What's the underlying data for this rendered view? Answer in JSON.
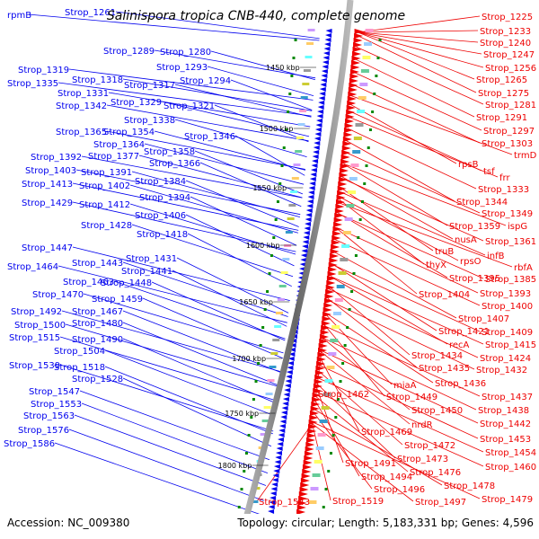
{
  "title": "Salinispora tropica CNB-440, complete genome",
  "footer": {
    "accession": "Accession: NC_009380",
    "summary": "Topology: circular; Length: 5,183,331 bp; Genes: 4,596"
  },
  "colors": {
    "forward": "#0000ee",
    "reverse": "#ee0000",
    "backbone": "#888888",
    "kbp_tick": "#008800"
  },
  "kbp_marks": [
    "1450 kbp",
    "1500 kbp",
    "1550 kbp",
    "1600 kbp",
    "1650 kbp",
    "1700 kbp",
    "1750 kbp",
    "1800 kbp"
  ],
  "left_labels": [
    "rpmB",
    "Strop_1261",
    "Strop_1289",
    "Strop_1280",
    "Strop_1293",
    "Strop_1294",
    "Strop_1319",
    "Strop_1318",
    "Strop_1317",
    "Strop_1335",
    "Strop_1331",
    "Strop_1329",
    "Strop_1342",
    "Strop_1321",
    "Strop_1338",
    "Strop_1365",
    "Strop_1354",
    "Strop_1346",
    "Strop_1364",
    "Strop_1392",
    "Strop_1377",
    "Strop_1358",
    "Strop_1366",
    "Strop_1403",
    "Strop_1391",
    "Strop_1384",
    "Strop_1413",
    "Strop_1402",
    "Strop_1394",
    "Strop_1429",
    "Strop_1412",
    "Strop_1406",
    "Strop_1428",
    "Strop_1418",
    "Strop_1447",
    "Strop_1443",
    "Strop_1431",
    "Strop_1441",
    "Strop_1464",
    "Strop_1463",
    "Strop_1448",
    "Strop_1470",
    "Strop_1459",
    "Strop_1492",
    "Strop_1467",
    "Strop_1500",
    "Strop_1480",
    "Strop_1515",
    "Strop_1490",
    "Strop_1504",
    "Strop_1539",
    "Strop_1518",
    "Strop_1528",
    "Strop_1547",
    "Strop_1553",
    "Strop_1563",
    "Strop_1576",
    "Strop_1586"
  ],
  "right_labels": [
    "Strop_1225",
    "Strop_1233",
    "Strop_1240",
    "Strop_1247",
    "Strop_1256",
    "Strop_1265",
    "Strop_1275",
    "Strop_1281",
    "Strop_1291",
    "Strop_1297",
    "Strop_1303",
    "trmD",
    "rpsB",
    "tsf",
    "frr",
    "Strop_1333",
    "Strop_1344",
    "Strop_1349",
    "Strop_1359",
    "ispG",
    "nusA",
    "Strop_1361",
    "truB",
    "infB",
    "rpsO",
    "rbfA",
    "thyX",
    "Strop_1395",
    "Strop_1385",
    "Strop_1393",
    "Strop_1404",
    "Strop_1400",
    "Strop_1407",
    "Strop_1421",
    "Strop_1409",
    "recA",
    "Strop_1415",
    "Strop_1434",
    "Strop_1424",
    "Strop_1435",
    "Strop_1432",
    "Strop_1436",
    "miaA",
    "Strop_1437",
    "Strop_1462",
    "Strop_1449",
    "Strop_1450",
    "Strop_1438",
    "nrdR",
    "Strop_1442",
    "Strop_1469",
    "Strop_1453",
    "Strop_1472",
    "Strop_1454",
    "Strop_1473",
    "Strop_1460",
    "Strop_1491",
    "Strop_1476",
    "Strop_1494",
    "Strop_1478",
    "Strop_1496",
    "Strop_1479",
    "Strop_1543",
    "Strop_1519",
    "Strop_1497"
  ]
}
